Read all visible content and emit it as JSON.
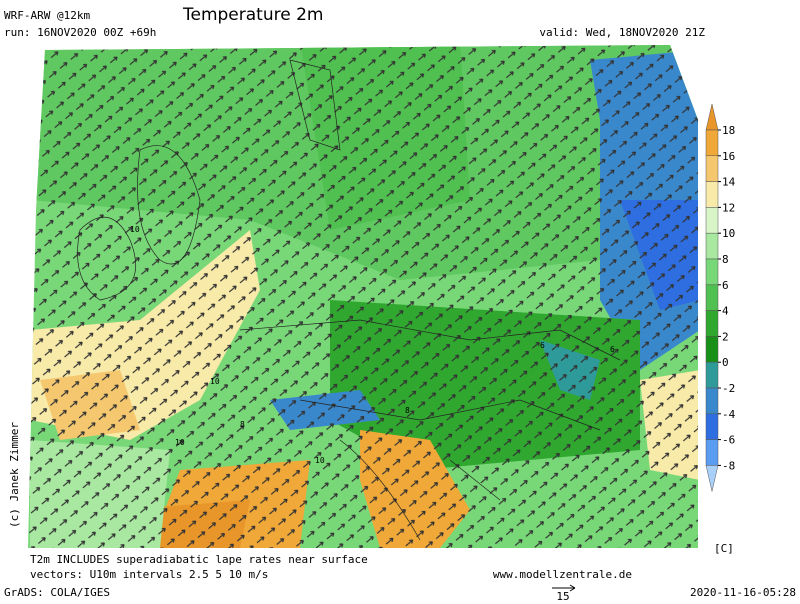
{
  "header": {
    "model": "WRF-ARW @12km",
    "title": "Temperature 2m",
    "run": "run: 16NOV2020 00Z +69h",
    "valid": "valid: Wed, 18NOV2020 21Z"
  },
  "colorbar": {
    "ticks": [
      18,
      16,
      14,
      12,
      10,
      8,
      6,
      4,
      2,
      0,
      -2,
      -4,
      -6,
      -8
    ],
    "colors": [
      "#e8962a",
      "#f0a838",
      "#f5c870",
      "#f8eaa8",
      "#d8f5c8",
      "#a8e8a0",
      "#78d878",
      "#50c050",
      "#30a830",
      "#189018",
      "#2e9a9a",
      "#3a88cc",
      "#2e6ee0",
      "#5a9cf0",
      "#a8d0f8"
    ],
    "unit": "[C]"
  },
  "map_labels": [
    "10",
    "10",
    "10",
    "8",
    "6",
    "6",
    "8",
    "10"
  ],
  "footer": {
    "credit": "(c) Janek Zimmer",
    "note1": "T2m INCLUDES superadiabatic lape rates near surface",
    "note2": "vectors: U10m intervals 2.5 5 10 m/s",
    "site": "www.modellzentrale.de",
    "grads": "GrADS: COLA/IGES",
    "ref_vector": "15",
    "timestamp": "2020-11-16-05:28"
  }
}
